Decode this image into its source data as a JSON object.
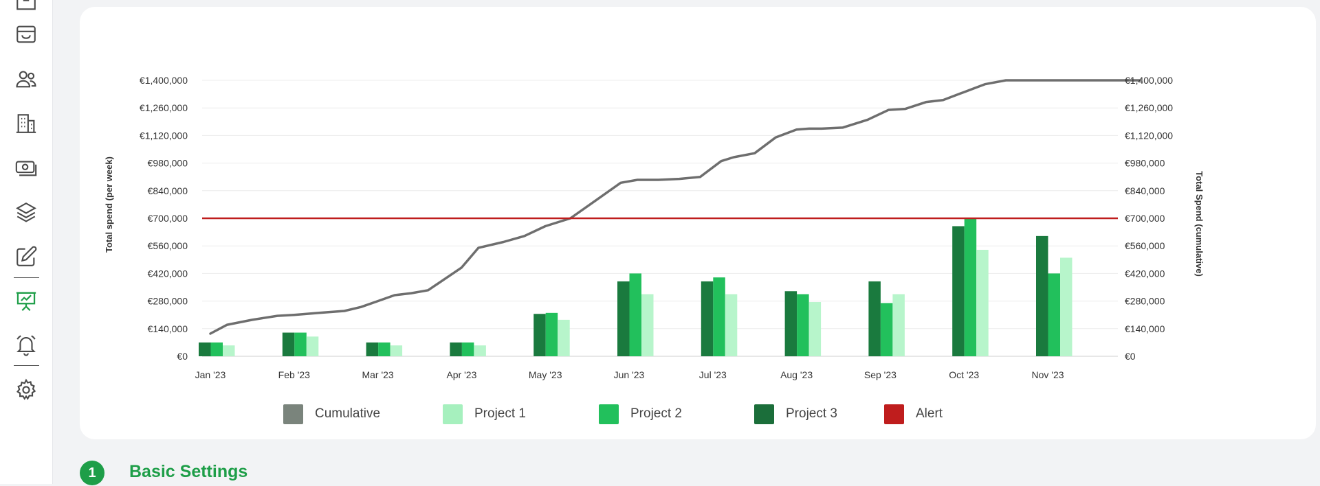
{
  "sidebar": {
    "items": [
      {
        "name": "box-icon",
        "active": false
      },
      {
        "name": "inbox-icon",
        "active": false
      },
      {
        "name": "users-icon",
        "active": false
      },
      {
        "name": "building-icon",
        "active": false
      },
      {
        "name": "money-icon",
        "active": false
      },
      {
        "name": "layers-icon",
        "active": false
      },
      {
        "name": "edit-icon",
        "active": false
      },
      {
        "name": "presentation-chart-icon",
        "active": true
      },
      {
        "name": "bell-icon",
        "active": false
      },
      {
        "name": "gear-icon",
        "active": false
      }
    ],
    "active_color": "#1e9e48",
    "icon_color": "#4a4a4a"
  },
  "chart_data": {
    "type": "bar",
    "ylabel_left": "Total spend (per week)",
    "ylabel_right": "Total Spend (cumulative)",
    "yticks": [
      "€0",
      "€140,000",
      "€280,000",
      "€420,000",
      "€560,000",
      "€700,000",
      "€840,000",
      "€980,000",
      "€1,120,000",
      "€1,260,000",
      "€1,400,000"
    ],
    "ylim": [
      0,
      1400000
    ],
    "categories": [
      "Jan '23",
      "Feb '23",
      "Mar '23",
      "Apr '23",
      "May '23",
      "Jun '23",
      "Jul '23",
      "Aug '23",
      "Sep '23",
      "Oct '23",
      "Nov '23"
    ],
    "series": [
      {
        "name": "Project 3",
        "color": "#1a7a3e",
        "values": [
          70000,
          120000,
          70000,
          70000,
          215000,
          380000,
          380000,
          330000,
          380000,
          660000,
          610000
        ]
      },
      {
        "name": "Project 2",
        "color": "#22c05c",
        "values": [
          70000,
          120000,
          70000,
          70000,
          220000,
          420000,
          400000,
          315000,
          270000,
          700000,
          420000
        ]
      },
      {
        "name": "Project 1",
        "color": "#b7f5cb",
        "values": [
          55000,
          100000,
          55000,
          55000,
          185000,
          315000,
          315000,
          275000,
          315000,
          540000,
          500000
        ]
      }
    ],
    "cumulative": {
      "name": "Cumulative",
      "color": "#6e6e6e",
      "x": [
        0,
        0.2,
        0.5,
        0.8,
        1.0,
        1.3,
        1.6,
        1.8,
        2.0,
        2.2,
        2.4,
        2.6,
        3.0,
        3.2,
        3.5,
        3.75,
        4.0,
        4.3,
        4.6,
        4.9,
        5.1,
        5.35,
        5.6,
        5.85,
        6.1,
        6.25,
        6.5,
        6.75,
        7.0,
        7.15,
        7.3,
        7.55,
        7.85,
        8.1,
        8.3,
        8.55,
        8.75,
        9.0,
        9.25,
        9.5,
        9.8,
        10.05,
        10.25,
        10.5,
        10.7,
        10.9,
        11.1
      ],
      "values": [
        115000,
        160000,
        185000,
        205000,
        210000,
        220000,
        230000,
        250000,
        280000,
        310000,
        320000,
        335000,
        450000,
        550000,
        580000,
        610000,
        660000,
        700000,
        790000,
        880000,
        895000,
        895000,
        900000,
        910000,
        990000,
        1010000,
        1030000,
        1110000,
        1150000,
        1155000,
        1155000,
        1160000,
        1200000,
        1250000,
        1255000,
        1290000,
        1300000,
        1340000,
        1380000,
        1400000,
        1400000,
        1400000,
        1400000,
        1400000,
        1400000,
        1400000,
        1400000
      ]
    },
    "alert": {
      "name": "Alert",
      "color": "#bf1d1d",
      "value": 700000
    },
    "grid": true,
    "legend_position": "bottom"
  },
  "legend": [
    {
      "label": "Cumulative",
      "color": "#7a847c"
    },
    {
      "label": "Project 1",
      "color": "#a6f0be"
    },
    {
      "label": "Project 2",
      "color": "#22c05c"
    },
    {
      "label": "Project 3",
      "color": "#1b6e3a"
    },
    {
      "label": "Alert",
      "color": "#bf1d1d"
    }
  ],
  "section": {
    "step": "1",
    "title": "Basic Settings"
  }
}
